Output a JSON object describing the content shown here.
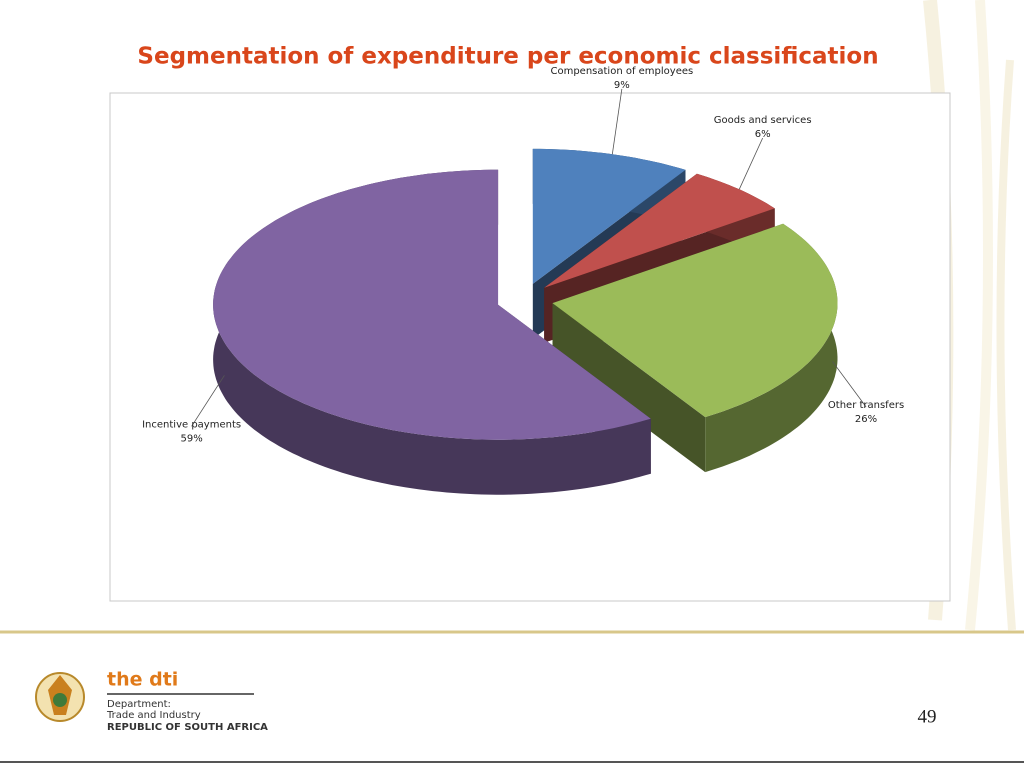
{
  "chart_data": {
    "type": "pie",
    "title": "Segmentation of expenditure per economic classification",
    "categories": [
      "Compensation of employees",
      "Goods and services",
      "Other transfers",
      "Incentive payments"
    ],
    "values": [
      9,
      6,
      26,
      59
    ],
    "value_labels": [
      "9%",
      "6%",
      "26%",
      "59%"
    ],
    "colors": [
      "#4f81bd",
      "#c0504d",
      "#9bbb59",
      "#8064a2"
    ]
  },
  "footer": {
    "logo_title": "the dti",
    "department": "Department:",
    "unit": "Trade and Industry",
    "country": "REPUBLIC OF SOUTH AFRICA",
    "page_number": 49
  }
}
